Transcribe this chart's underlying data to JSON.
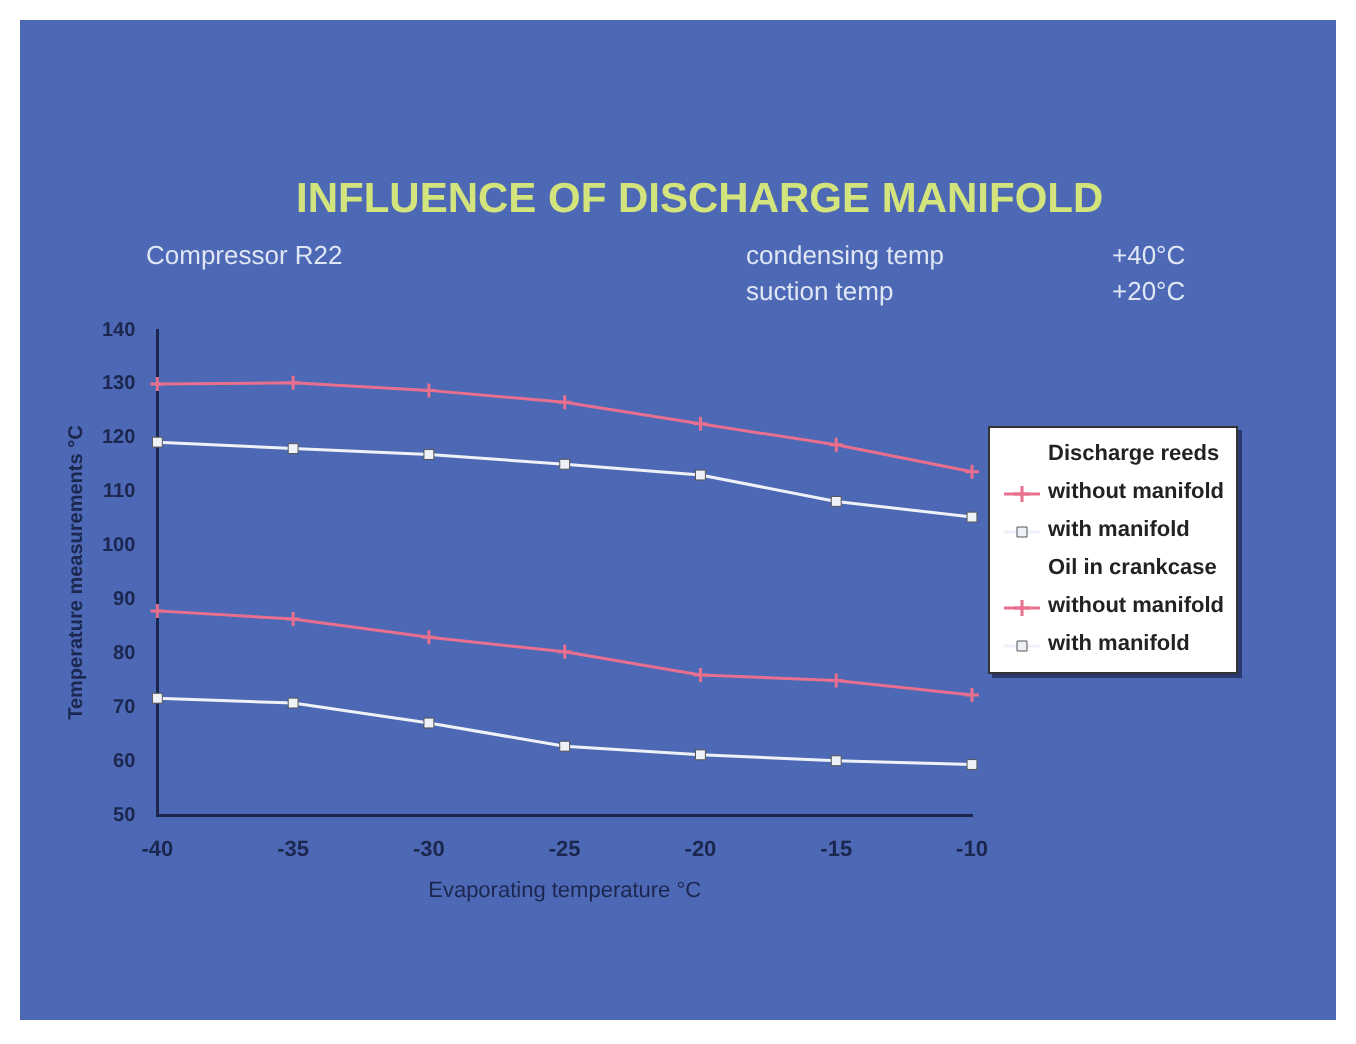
{
  "chart_data": {
    "type": "line",
    "title": "INFLUENCE OF DISCHARGE MANIFOLD",
    "subtitle": "Compressor R22",
    "xlabel": "Evaporating temperature °C",
    "ylabel": "Temperature measurements °C",
    "annotations": [
      "condensing temp",
      "+40°C",
      "suction temp",
      "+20°C",
      "Discharge reeds",
      "Oil in crankcase"
    ],
    "x": [
      -40,
      -35,
      -30,
      -25,
      -20,
      -15,
      -10
    ],
    "series": [
      {
        "name": "without manifold",
        "color": "#e8708e",
        "marker": "cross",
        "values": [
          130,
          130.2,
          128.8,
          126.6,
          122.6,
          118.7,
          113.7
        ]
      },
      {
        "name": "with manifold",
        "color": "#eef2f8",
        "marker": "square",
        "values": [
          119.2,
          118,
          116.9,
          115.1,
          113.1,
          108.2,
          105.3
        ]
      },
      {
        "name": "without manifold",
        "color": "#e8708e",
        "marker": "cross",
        "values": [
          87.9,
          86.4,
          83,
          80.3,
          76,
          75,
          72.3
        ]
      },
      {
        "name": "with manifold",
        "color": "#eef2f8",
        "marker": "square",
        "values": [
          71.7,
          70.8,
          67.1,
          62.8,
          61.2,
          60.1,
          59.4
        ]
      }
    ],
    "xlim": [
      -40,
      -10
    ],
    "xticks": [
      -40,
      -35,
      -30,
      -25,
      -20,
      -15,
      -10
    ],
    "ylim": [
      50,
      140
    ],
    "yticks": [
      50,
      60,
      70,
      80,
      90,
      100,
      110,
      120,
      130,
      140
    ],
    "grid": false,
    "legend": "right",
    "line_style": "solid"
  }
}
